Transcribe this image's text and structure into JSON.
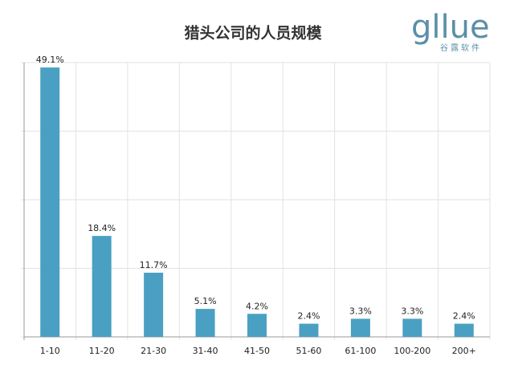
{
  "chart_data": {
    "type": "bar",
    "title": "猎头公司的人员规模",
    "categories": [
      "1-10",
      "11-20",
      "21-30",
      "31-40",
      "41-50",
      "51-60",
      "61-100",
      "100-200",
      "200+"
    ],
    "values": [
      49.1,
      18.4,
      11.7,
      5.1,
      4.2,
      2.4,
      3.3,
      3.3,
      2.4
    ],
    "value_labels": [
      "49.1%",
      "18.4%",
      "11.7%",
      "5.1%",
      "4.2%",
      "2.4%",
      "3.3%",
      "3.3%",
      "2.4%"
    ],
    "color": "#4aa0c2",
    "ylim": [
      0,
      50
    ],
    "yticks": [
      0,
      12.5,
      25,
      37.5,
      50
    ],
    "grid": true
  },
  "logo": {
    "name": "gllue",
    "subtitle": "谷露软件"
  }
}
